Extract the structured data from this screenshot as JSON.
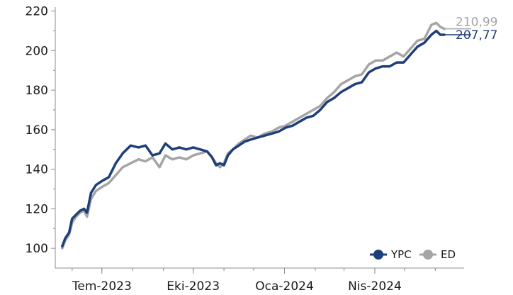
{
  "chart_data": {
    "type": "line",
    "title": "",
    "xlabel": "",
    "ylabel": "",
    "ylim": [
      90,
      222
    ],
    "xlim": [
      "2023-05-15",
      "2024-06-30"
    ],
    "y_ticks": [
      "100",
      "120",
      "140",
      "160",
      "180",
      "200",
      "220"
    ],
    "x_ticks": [
      {
        "label": "Tem-2023",
        "date": "2023-07-01"
      },
      {
        "label": "Eki-2023",
        "date": "2023-10-01"
      },
      {
        "label": "Oca-2024",
        "date": "2024-01-01"
      },
      {
        "label": "Nis-2024",
        "date": "2024-04-01"
      }
    ],
    "grid": false,
    "legend_position": "bottom-right",
    "series": [
      {
        "name": "ED",
        "color": "#a5a5a6",
        "end_label": "210,99",
        "points": [
          [
            "2023-05-22",
            100
          ],
          [
            "2023-05-25",
            104
          ],
          [
            "2023-05-29",
            107
          ],
          [
            "2023-06-01",
            113
          ],
          [
            "2023-06-05",
            116
          ],
          [
            "2023-06-09",
            118
          ],
          [
            "2023-06-13",
            119
          ],
          [
            "2023-06-16",
            116
          ],
          [
            "2023-06-20",
            125
          ],
          [
            "2023-06-25",
            129
          ],
          [
            "2023-07-01",
            131
          ],
          [
            "2023-07-08",
            133
          ],
          [
            "2023-07-15",
            137
          ],
          [
            "2023-07-22",
            141
          ],
          [
            "2023-07-30",
            143
          ],
          [
            "2023-08-07",
            145
          ],
          [
            "2023-08-14",
            144
          ],
          [
            "2023-08-21",
            146
          ],
          [
            "2023-08-28",
            141
          ],
          [
            "2023-09-03",
            147
          ],
          [
            "2023-09-10",
            145
          ],
          [
            "2023-09-17",
            146
          ],
          [
            "2023-09-24",
            145
          ],
          [
            "2023-10-01",
            147
          ],
          [
            "2023-10-08",
            148
          ],
          [
            "2023-10-15",
            149
          ],
          [
            "2023-10-20",
            146
          ],
          [
            "2023-10-24",
            143
          ],
          [
            "2023-10-28",
            141
          ],
          [
            "2023-11-01",
            143
          ],
          [
            "2023-11-05",
            148
          ],
          [
            "2023-11-10",
            150
          ],
          [
            "2023-11-16",
            153
          ],
          [
            "2023-11-22",
            155
          ],
          [
            "2023-11-28",
            157
          ],
          [
            "2023-12-05",
            156
          ],
          [
            "2023-12-12",
            158
          ],
          [
            "2023-12-19",
            159
          ],
          [
            "2023-12-26",
            161
          ],
          [
            "2024-01-02",
            162
          ],
          [
            "2024-01-09",
            164
          ],
          [
            "2024-01-16",
            166
          ],
          [
            "2024-01-23",
            168
          ],
          [
            "2024-01-30",
            170
          ],
          [
            "2024-02-06",
            172
          ],
          [
            "2024-02-13",
            176
          ],
          [
            "2024-02-20",
            179
          ],
          [
            "2024-02-27",
            183
          ],
          [
            "2024-03-05",
            185
          ],
          [
            "2024-03-12",
            187
          ],
          [
            "2024-03-19",
            188
          ],
          [
            "2024-03-26",
            193
          ],
          [
            "2024-04-02",
            195
          ],
          [
            "2024-04-09",
            195
          ],
          [
            "2024-04-16",
            197
          ],
          [
            "2024-04-23",
            199
          ],
          [
            "2024-04-30",
            197
          ],
          [
            "2024-05-07",
            201
          ],
          [
            "2024-05-14",
            205
          ],
          [
            "2024-05-21",
            206
          ],
          [
            "2024-05-28",
            213
          ],
          [
            "2024-06-02",
            214
          ],
          [
            "2024-06-06",
            212
          ],
          [
            "2024-06-10",
            211
          ]
        ]
      },
      {
        "name": "YPC",
        "color": "#1f3f7a",
        "end_label": "207,77",
        "points": [
          [
            "2023-05-22",
            101
          ],
          [
            "2023-05-25",
            105
          ],
          [
            "2023-05-29",
            108
          ],
          [
            "2023-06-01",
            115
          ],
          [
            "2023-06-05",
            117
          ],
          [
            "2023-06-09",
            119
          ],
          [
            "2023-06-13",
            120
          ],
          [
            "2023-06-16",
            118
          ],
          [
            "2023-06-20",
            128
          ],
          [
            "2023-06-25",
            132
          ],
          [
            "2023-07-01",
            134
          ],
          [
            "2023-07-08",
            136
          ],
          [
            "2023-07-15",
            143
          ],
          [
            "2023-07-22",
            148
          ],
          [
            "2023-07-30",
            152
          ],
          [
            "2023-08-07",
            151
          ],
          [
            "2023-08-14",
            152
          ],
          [
            "2023-08-21",
            147
          ],
          [
            "2023-08-28",
            148
          ],
          [
            "2023-09-03",
            153
          ],
          [
            "2023-09-10",
            150
          ],
          [
            "2023-09-17",
            151
          ],
          [
            "2023-09-24",
            150
          ],
          [
            "2023-10-01",
            151
          ],
          [
            "2023-10-08",
            150
          ],
          [
            "2023-10-15",
            149
          ],
          [
            "2023-10-20",
            146
          ],
          [
            "2023-10-24",
            142
          ],
          [
            "2023-10-28",
            143
          ],
          [
            "2023-11-01",
            142
          ],
          [
            "2023-11-05",
            147
          ],
          [
            "2023-11-10",
            150
          ],
          [
            "2023-11-16",
            152
          ],
          [
            "2023-11-22",
            154
          ],
          [
            "2023-11-28",
            155
          ],
          [
            "2023-12-05",
            156
          ],
          [
            "2023-12-12",
            157
          ],
          [
            "2023-12-19",
            158
          ],
          [
            "2023-12-26",
            159
          ],
          [
            "2024-01-02",
            161
          ],
          [
            "2024-01-09",
            162
          ],
          [
            "2024-01-16",
            164
          ],
          [
            "2024-01-23",
            166
          ],
          [
            "2024-01-30",
            167
          ],
          [
            "2024-02-06",
            170
          ],
          [
            "2024-02-13",
            174
          ],
          [
            "2024-02-20",
            176
          ],
          [
            "2024-02-27",
            179
          ],
          [
            "2024-03-05",
            181
          ],
          [
            "2024-03-12",
            183
          ],
          [
            "2024-03-19",
            184
          ],
          [
            "2024-03-26",
            189
          ],
          [
            "2024-04-02",
            191
          ],
          [
            "2024-04-09",
            192
          ],
          [
            "2024-04-16",
            192
          ],
          [
            "2024-04-23",
            194
          ],
          [
            "2024-04-30",
            194
          ],
          [
            "2024-05-07",
            198
          ],
          [
            "2024-05-14",
            202
          ],
          [
            "2024-05-21",
            204
          ],
          [
            "2024-05-28",
            208
          ],
          [
            "2024-06-02",
            210
          ],
          [
            "2024-06-06",
            208
          ],
          [
            "2024-06-10",
            208
          ]
        ]
      }
    ]
  }
}
